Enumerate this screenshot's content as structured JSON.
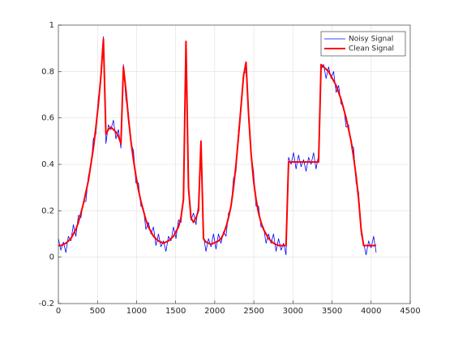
{
  "chart_data": {
    "type": "line",
    "x": [
      0,
      32,
      64,
      96,
      128,
      160,
      192,
      224,
      256,
      288,
      320,
      352,
      384,
      416,
      448,
      480,
      512,
      544,
      576,
      608,
      640,
      672,
      704,
      736,
      768,
      800,
      832,
      864,
      896,
      928,
      960,
      992,
      1024,
      1056,
      1088,
      1120,
      1152,
      1184,
      1216,
      1248,
      1280,
      1312,
      1344,
      1376,
      1408,
      1440,
      1472,
      1504,
      1536,
      1568,
      1600,
      1632,
      1664,
      1696,
      1728,
      1760,
      1792,
      1824,
      1856,
      1888,
      1920,
      1952,
      1984,
      2016,
      2048,
      2080,
      2112,
      2144,
      2176,
      2208,
      2240,
      2272,
      2304,
      2336,
      2368,
      2400,
      2432,
      2464,
      2496,
      2528,
      2560,
      2592,
      2624,
      2656,
      2688,
      2720,
      2752,
      2784,
      2816,
      2848,
      2880,
      2912,
      2944,
      2976,
      3008,
      3040,
      3072,
      3104,
      3136,
      3168,
      3200,
      3232,
      3264,
      3296,
      3328,
      3360,
      3392,
      3424,
      3456,
      3488,
      3520,
      3552,
      3584,
      3616,
      3648,
      3680,
      3712,
      3744,
      3776,
      3808,
      3840,
      3872,
      3904,
      3936,
      3968,
      4000,
      4032,
      4064
    ],
    "series": [
      {
        "name": "Noisy Signal",
        "color": "#0000ff",
        "values": [
          0.08,
          0.03,
          0.065,
          0.02,
          0.09,
          0.07,
          0.14,
          0.09,
          0.18,
          0.17,
          0.24,
          0.24,
          0.35,
          0.39,
          0.51,
          0.53,
          0.69,
          0.76,
          0.95,
          0.49,
          0.57,
          0.55,
          0.59,
          0.51,
          0.55,
          0.47,
          0.83,
          0.68,
          0.62,
          0.49,
          0.46,
          0.32,
          0.32,
          0.22,
          0.21,
          0.12,
          0.15,
          0.1,
          0.13,
          0.05,
          0.1,
          0.045,
          0.07,
          0.025,
          0.09,
          0.07,
          0.13,
          0.08,
          0.16,
          0.15,
          0.26,
          0.89,
          0.32,
          0.16,
          0.19,
          0.14,
          0.23,
          0.48,
          0.09,
          0.025,
          0.08,
          0.045,
          0.1,
          0.035,
          0.1,
          0.06,
          0.11,
          0.09,
          0.19,
          0.21,
          0.34,
          0.37,
          0.55,
          0.63,
          0.79,
          0.8,
          0.64,
          0.44,
          0.37,
          0.22,
          0.22,
          0.13,
          0.13,
          0.06,
          0.1,
          0.06,
          0.1,
          0.025,
          0.08,
          0.03,
          0.06,
          0.01,
          0.43,
          0.4,
          0.45,
          0.38,
          0.44,
          0.39,
          0.42,
          0.37,
          0.43,
          0.4,
          0.45,
          0.38,
          0.44,
          0.81,
          0.83,
          0.77,
          0.82,
          0.77,
          0.8,
          0.71,
          0.74,
          0.66,
          0.65,
          0.56,
          0.57,
          0.49,
          0.47,
          0.32,
          0.28,
          0.1,
          0.06,
          0.01,
          0.07,
          0.04,
          0.09,
          0.02
        ]
      },
      {
        "name": "Clean Signal",
        "color": "#ff0000",
        "values": [
          0.05,
          0.05,
          0.055,
          0.06,
          0.07,
          0.08,
          0.1,
          0.12,
          0.15,
          0.19,
          0.23,
          0.28,
          0.33,
          0.4,
          0.47,
          0.56,
          0.66,
          0.78,
          0.94,
          0.53,
          0.55,
          0.56,
          0.55,
          0.54,
          0.52,
          0.49,
          0.82,
          0.72,
          0.6,
          0.5,
          0.42,
          0.35,
          0.29,
          0.24,
          0.2,
          0.16,
          0.13,
          0.11,
          0.09,
          0.08,
          0.07,
          0.065,
          0.06,
          0.065,
          0.07,
          0.08,
          0.09,
          0.11,
          0.13,
          0.17,
          0.25,
          0.93,
          0.3,
          0.17,
          0.15,
          0.17,
          0.2,
          0.5,
          0.08,
          0.065,
          0.06,
          0.055,
          0.06,
          0.065,
          0.07,
          0.08,
          0.1,
          0.13,
          0.17,
          0.22,
          0.3,
          0.4,
          0.52,
          0.65,
          0.78,
          0.84,
          0.62,
          0.45,
          0.33,
          0.25,
          0.19,
          0.15,
          0.12,
          0.1,
          0.08,
          0.07,
          0.06,
          0.055,
          0.05,
          0.05,
          0.05,
          0.05,
          0.41,
          0.41,
          0.41,
          0.41,
          0.41,
          0.41,
          0.41,
          0.41,
          0.41,
          0.41,
          0.41,
          0.41,
          0.41,
          0.83,
          0.82,
          0.81,
          0.8,
          0.78,
          0.76,
          0.74,
          0.71,
          0.68,
          0.64,
          0.6,
          0.55,
          0.5,
          0.43,
          0.35,
          0.25,
          0.12,
          0.05,
          0.05,
          0.05,
          0.05,
          0.05,
          0.05
        ]
      }
    ],
    "xlim": [
      0,
      4500
    ],
    "xticks": [
      0,
      500,
      1000,
      1500,
      2000,
      2500,
      3000,
      3500,
      4000,
      4500
    ],
    "ylim": [
      -0.2,
      1
    ],
    "yticks": [
      -0.2,
      0,
      0.2,
      0.4,
      0.6,
      0.8,
      1
    ],
    "grid": true,
    "legend": "northeast"
  }
}
